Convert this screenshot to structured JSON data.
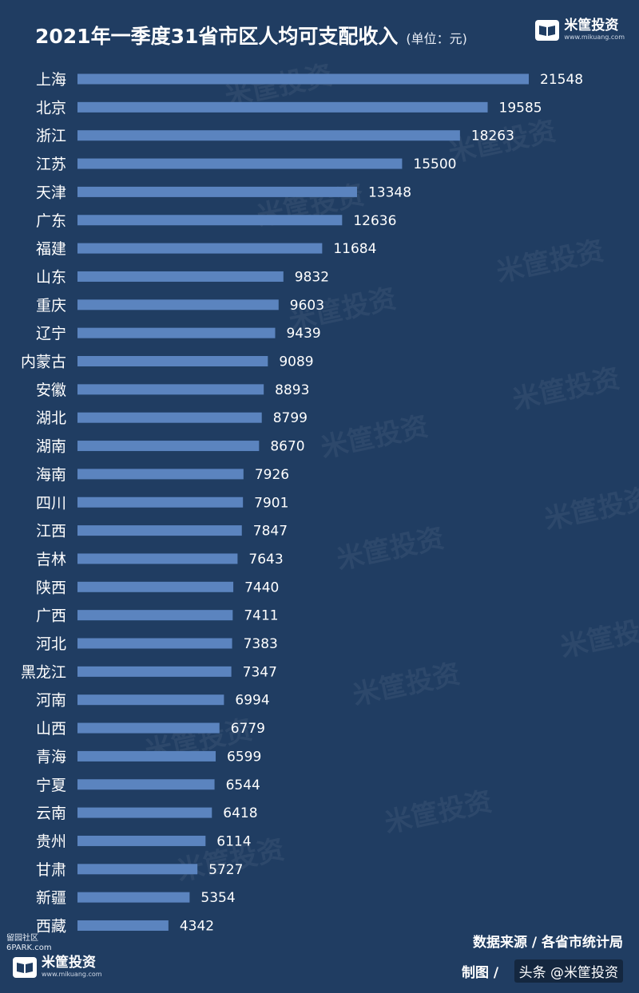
{
  "header": {
    "title": "2021年一季度31省市区人均可支配收入",
    "unit": "(单位：元)"
  },
  "brand": {
    "name": "米筐投资",
    "url": "www.mikuang.com"
  },
  "footer": {
    "source": "数据来源 / 各省市统计局",
    "made_by": "制图 /",
    "credit": "头条 @米筐投资",
    "site_mark_line1": "留园社区",
    "site_mark_line2": "6PARK.com"
  },
  "watermark_text": "米筐投资",
  "colors": {
    "background": "#203d62",
    "bar": "#5b84bf",
    "text": "#ffffff"
  },
  "chart_data": {
    "type": "bar",
    "orientation": "horizontal",
    "title": "2021年一季度31省市区人均可支配收入",
    "unit": "(单位：元)",
    "categories": [
      "上海",
      "北京",
      "浙江",
      "江苏",
      "天津",
      "广东",
      "福建",
      "山东",
      "重庆",
      "辽宁",
      "内蒙古",
      "安徽",
      "湖北",
      "湖南",
      "海南",
      "四川",
      "江西",
      "吉林",
      "陕西",
      "广西",
      "河北",
      "黑龙江",
      "河南",
      "山西",
      "青海",
      "宁夏",
      "云南",
      "贵州",
      "甘肃",
      "新疆",
      "西藏"
    ],
    "values": [
      21548,
      19585,
      18263,
      15500,
      13348,
      12636,
      11684,
      9832,
      9603,
      9439,
      9089,
      8893,
      8799,
      8670,
      7926,
      7901,
      7847,
      7643,
      7440,
      7411,
      7383,
      7347,
      6994,
      6779,
      6599,
      6544,
      6418,
      6114,
      5727,
      5354,
      4342
    ],
    "xlim": [
      0,
      21548
    ],
    "grid": false,
    "legend": "none"
  }
}
